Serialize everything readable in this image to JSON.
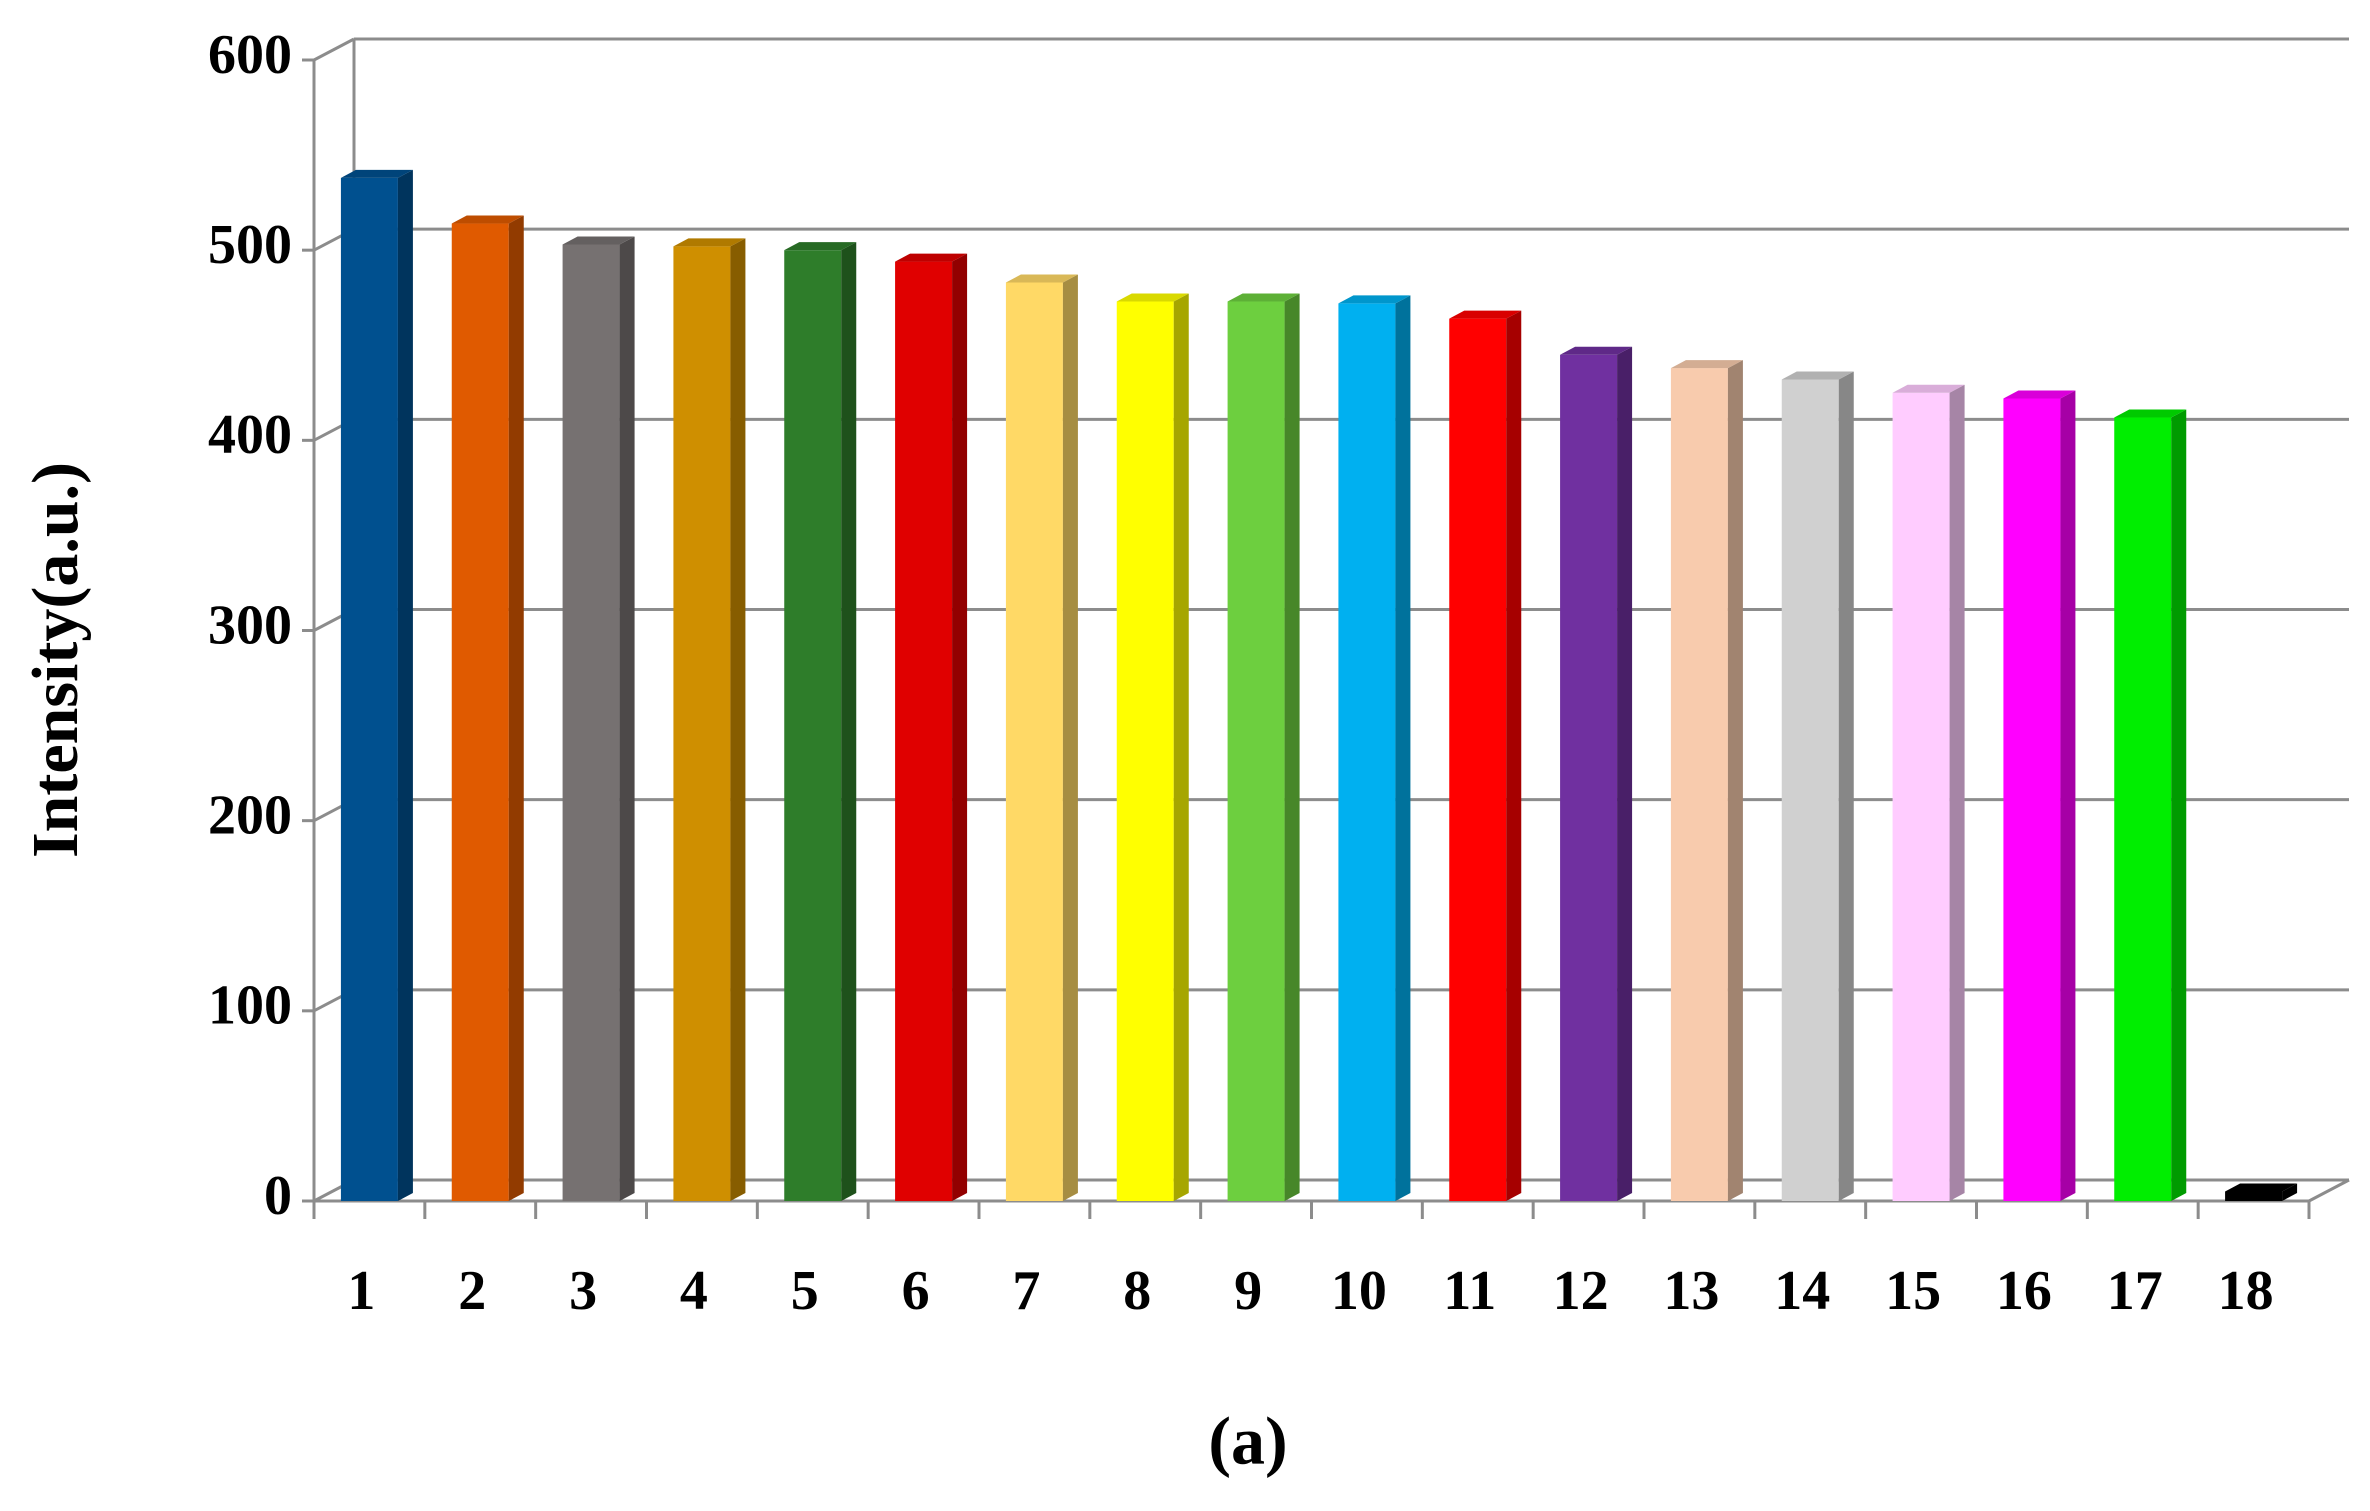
{
  "chart_data": {
    "type": "bar3d",
    "y_label": "Intensity(a.u.)",
    "caption": "(a)",
    "categories": [
      "1",
      "2",
      "3",
      "4",
      "5",
      "6",
      "7",
      "8",
      "9",
      "10",
      "11",
      "12",
      "13",
      "14",
      "15",
      "16",
      "17",
      "18"
    ],
    "values": [
      538,
      514,
      503,
      502,
      500,
      494,
      483,
      473,
      473,
      472,
      464,
      445,
      438,
      432,
      425,
      422,
      412,
      5
    ],
    "colors": [
      "#00508f",
      "#e05a00",
      "#767171",
      "#cf8f00",
      "#2e7d2a",
      "#e00000",
      "#ffd966",
      "#ffff00",
      "#6dcf3f",
      "#00b0f0",
      "#ff0000",
      "#7030a0",
      "#f8cbad",
      "#d0d0d0",
      "#ffccff",
      "#ff00ff",
      "#00ee00",
      "#000000"
    ],
    "ylim": [
      0,
      600
    ],
    "yticks": [
      0,
      100,
      200,
      300,
      400,
      500,
      600
    ],
    "grid": true
  }
}
